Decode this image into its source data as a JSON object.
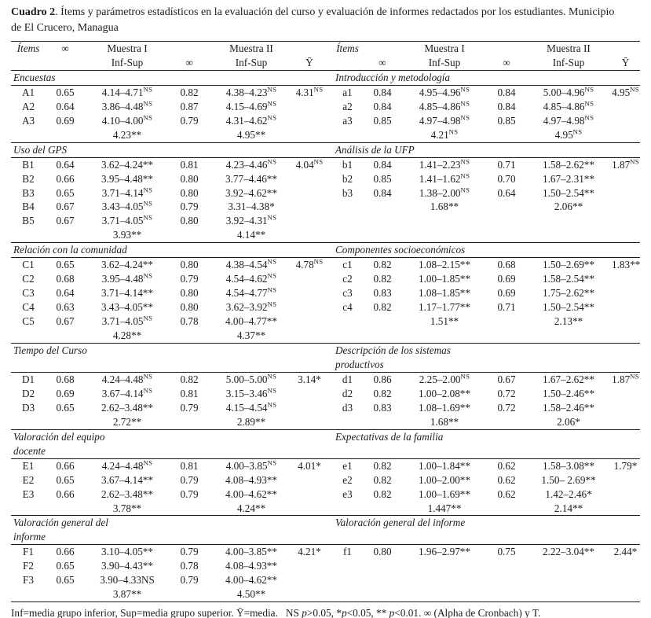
{
  "title": {
    "bold": "Cuadro 2",
    "rest": ". Ítems y parámetros estadísticos en la evaluación del curso y evaluación de informes redactados por los estudiantes. Municipio\nde El Crucero, Managua"
  },
  "header": {
    "items": "Ítems",
    "alpha": "∞",
    "muestra1": "Muestra I",
    "muestra2": "Muestra II",
    "inf_sup": "Inf-Sup",
    "y_mean": "Ȳ"
  },
  "sections": [
    {
      "left": {
        "heading": "Encuestas",
        "rows": [
          [
            "A1",
            "0.65",
            "4.14–4.71^NS",
            "0.82",
            "4.38–4.23^NS",
            "4.31^NS"
          ],
          [
            "A2",
            "0.64",
            "3.86–4.48^NS",
            "0.87",
            "4.15–4.69^NS",
            ""
          ],
          [
            "A3",
            "0.69",
            "4.10–4.00^NS",
            "0.79",
            "4.31–4.62^NS",
            ""
          ],
          [
            "",
            "",
            "4.23**",
            "",
            "4.95**",
            ""
          ]
        ]
      },
      "right": {
        "heading": "Introducción y metodología",
        "rows": [
          [
            "a1",
            "0.84",
            "4.95–4.96^NS",
            "0.84",
            "5.00–4.96^NS",
            "4.95^NS"
          ],
          [
            "a2",
            "0.84",
            "4.85–4.86^NS",
            "0.84",
            "4.85–4.86^NS",
            ""
          ],
          [
            "a3",
            "0.85",
            "4.97–4.98^NS",
            "0.85",
            "4.97–4.98^NS",
            ""
          ],
          [
            "",
            "",
            "4.21^NS",
            "",
            "4.95^NS",
            ""
          ]
        ]
      }
    },
    {
      "left": {
        "heading": "Uso del GPS",
        "rows": [
          [
            "B1",
            "0.64",
            "3.62–4.24**",
            "0.81",
            "4.23–4.46^NS",
            "4.04^NS"
          ],
          [
            "B2",
            "0.66",
            "3.95–4.48**",
            "0.80",
            "3.77–4.46**",
            ""
          ],
          [
            "B3",
            "0.65",
            "3.71–4.14^NS",
            "0.80",
            "3.92–4.62**",
            ""
          ],
          [
            "B4",
            "0.67",
            "3.43–4.05^NS",
            "0.79",
            "3.31–4.38*",
            ""
          ],
          [
            "B5",
            "0.67",
            "3.71–4.05^NS",
            "0.80",
            "3.92–4.31^NS",
            ""
          ],
          [
            "",
            "",
            "3.93**",
            "",
            "4.14**",
            ""
          ]
        ]
      },
      "right": {
        "heading": "Análisis de la UFP",
        "rows": [
          [
            "b1",
            "0.84",
            "1.41–2.23^NS",
            "0.71",
            "1.58–2.62**",
            "1.87^NS"
          ],
          [
            "b2",
            "0.85",
            "1.41–1.62^NS",
            "0.70",
            "1.67–2.31**",
            ""
          ],
          [
            "b3",
            "0.84",
            "1.38–2.00^NS",
            "0.64",
            "1.50–2.54**",
            ""
          ],
          [
            "",
            "",
            "1.68**",
            "",
            "2.06**",
            ""
          ]
        ]
      }
    },
    {
      "left": {
        "heading": "Relación con la comunidad",
        "rows": [
          [
            "C1",
            "0.65",
            "3.62–4.24**",
            "0.80",
            "4.38–4.54^NS",
            "4.78^NS"
          ],
          [
            "C2",
            "0.68",
            "3.95–4.48^NS",
            "0.79",
            "4.54–4.62^NS",
            ""
          ],
          [
            "C3",
            "0.64",
            "3.71–4.14**",
            "0.80",
            "4.54–4.77^NS",
            ""
          ],
          [
            "C4",
            "0.63",
            "3.43–4.05**",
            "0.80",
            "3.62–3.92^NS",
            ""
          ],
          [
            "C5",
            "0.67",
            "3.71–4.05^NS",
            "0.78",
            "4.00–4.77**",
            ""
          ],
          [
            "",
            "",
            "4.28**",
            "",
            "4.37**",
            ""
          ]
        ]
      },
      "right": {
        "heading": "Componentes socioeconómicos",
        "rows": [
          [
            "c1",
            "0.82",
            "1.08–2.15**",
            "0.68",
            "1.50–2.69**",
            "1.83**"
          ],
          [
            "c2",
            "0.82",
            "1.00–1.85**",
            "0.69",
            "1.58–2.54**",
            ""
          ],
          [
            "c3",
            "0.83",
            "1.08–1.85**",
            "0.69",
            "1.75–2.62**",
            ""
          ],
          [
            "c4",
            "0.82",
            "1.17–1.77**",
            "0.71",
            "1.50–2.54**",
            ""
          ],
          [
            "",
            "",
            "1.51**",
            "",
            "2.13**",
            ""
          ]
        ]
      }
    },
    {
      "left": {
        "heading": "Tiempo del Curso",
        "rows": [
          [
            "D1",
            "0.68",
            "4.24–4.48^NS",
            "0.82",
            "5.00–5.00^NS",
            "3.14*"
          ],
          [
            "D2",
            "0.69",
            "3.67–4.14^NS",
            "0.81",
            "3.15–3.46^NS",
            ""
          ],
          [
            "D3",
            "0.65",
            "2.62–3.48**",
            "0.79",
            "4.15–4.54^NS",
            ""
          ],
          [
            "",
            "",
            "2.72**",
            "",
            "2.89**",
            ""
          ]
        ]
      },
      "right": {
        "heading": "Descripción de los sistemas\nproductivos",
        "rows": [
          [
            "d1",
            "0.86",
            "2.25–2.00^NS",
            "0.67",
            "1.67–2.62**",
            "1.87^NS"
          ],
          [
            "d2",
            "0.82",
            "1.00–2.08**",
            "0.72",
            "1.50–2.46**",
            ""
          ],
          [
            "d3",
            "0.83",
            "1.08–1.69**",
            "0.72",
            "1.58–2.46**",
            ""
          ],
          [
            "",
            "",
            "1.68**",
            "",
            "2.06*",
            ""
          ]
        ]
      }
    },
    {
      "left": {
        "heading": "Valoración del equipo\ndocente",
        "rows": [
          [
            "E1",
            "0.66",
            "4.24–4.48^NS",
            "0.81",
            "4.00–3.85^NS",
            "4.01*"
          ],
          [
            "E2",
            "0.65",
            "3.67–4.14**",
            "0.79",
            "4.08–4.93**",
            ""
          ],
          [
            "E3",
            "0.66",
            "2.62–3.48**",
            "0.79",
            "4.00–4.62**",
            ""
          ],
          [
            "",
            "",
            "3.78**",
            "",
            "4.24**",
            ""
          ]
        ]
      },
      "right": {
        "heading": "Expectativas de la familia",
        "rows": [
          [
            "e1",
            "0.82",
            "1.00–1.84**",
            "0.62",
            "1.58–3.08**",
            "1.79*"
          ],
          [
            "e2",
            "0.82",
            "1.00–2.00**",
            "0.62",
            "1.50– 2.69**",
            ""
          ],
          [
            "e3",
            "0.82",
            "1.00–1.69**",
            "0.62",
            "1.42–2.46*",
            ""
          ],
          [
            "",
            "",
            "1.447**",
            "",
            "2.14**",
            ""
          ]
        ]
      }
    },
    {
      "left": {
        "heading": "Valoración general del\ninforme",
        "rows": [
          [
            "F1",
            "0.66",
            "3.10–4.05**",
            "0.79",
            "4.00–3.85**",
            "4.21*"
          ],
          [
            "F2",
            "0.65",
            "3.90–4.43**",
            "0.78",
            "4.08–4.93**",
            ""
          ],
          [
            "F3",
            "0.65",
            "3.90–4.33NS",
            "0.79",
            "4.00–4.62**",
            ""
          ],
          [
            "",
            "",
            "3.87**",
            "",
            "4.50**",
            ""
          ]
        ]
      },
      "right": {
        "heading": "Valoración general del informe",
        "rows": [
          [
            "f1",
            "0.80",
            "1.96–2.97**",
            "0.75",
            "2.22–3.04**",
            "2.44*"
          ]
        ]
      }
    }
  ],
  "footnote": [
    {
      "text": "Inf=media grupo inferior, Sup=media grupo superior. Ȳ=media.   NS ",
      "italic": false
    },
    {
      "text": "p",
      "italic": true
    },
    {
      "text": ">0.05, *",
      "italic": false
    },
    {
      "text": "p",
      "italic": true
    },
    {
      "text": "<0.05, ** ",
      "italic": false
    },
    {
      "text": "p",
      "italic": true
    },
    {
      "text": "<0.01. ∞ (Alpha de Cronbach) y T.",
      "italic": false
    }
  ]
}
